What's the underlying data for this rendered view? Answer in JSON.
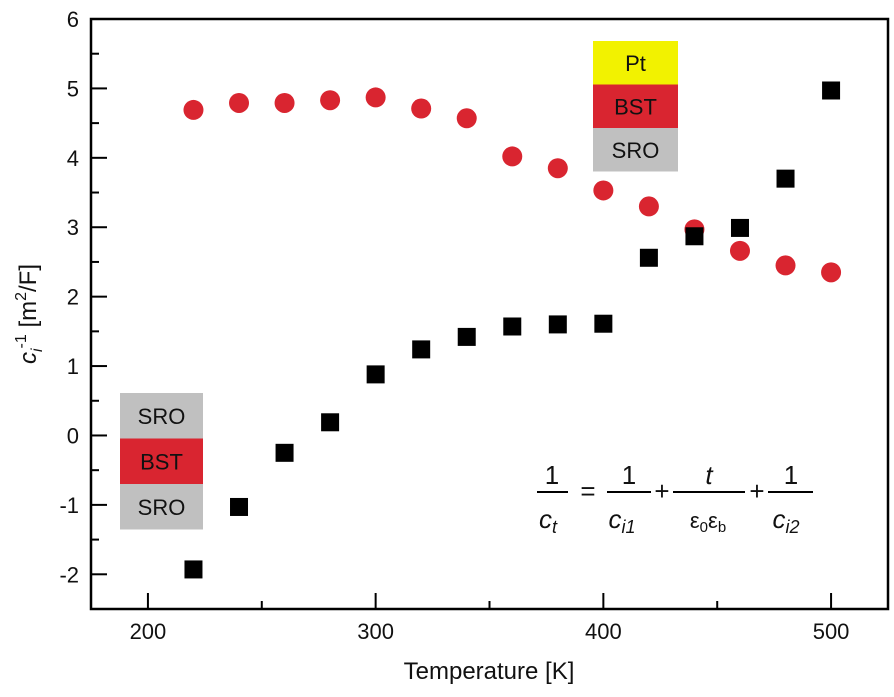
{
  "chart_data": {
    "type": "scatter",
    "title": "",
    "xlabel": "Temperature [K]",
    "ylabel": {
      "base": "c",
      "sub": "i",
      "sup": "-1",
      "unit_pre": " [m",
      "unit_sup": "2",
      "unit_post": "/F]"
    },
    "xlim": [
      175,
      525
    ],
    "ylim": [
      -2.5,
      6
    ],
    "xticks": [
      "200",
      "300",
      "400",
      "500"
    ],
    "xtick_values": [
      200,
      300,
      400,
      500
    ],
    "yticks": [
      "-2",
      "-1",
      "0",
      "1",
      "2",
      "3",
      "4",
      "5",
      "6"
    ],
    "ytick_values": [
      -2,
      -1,
      0,
      1,
      2,
      3,
      4,
      5,
      6
    ],
    "grid": false,
    "series": [
      {
        "name": "Pt/BST/SRO",
        "marker": "circle",
        "color": "#d92530",
        "x": [
          220,
          240,
          260,
          280,
          300,
          320,
          340,
          360,
          380,
          400,
          420,
          440,
          460,
          480,
          500
        ],
        "y": [
          4.69,
          4.79,
          4.79,
          4.83,
          4.87,
          4.71,
          4.57,
          4.02,
          3.85,
          3.53,
          3.3,
          2.97,
          2.66,
          2.45,
          2.35
        ]
      },
      {
        "name": "SRO/BST/SRO",
        "marker": "square",
        "color": "#000000",
        "x": [
          220,
          240,
          260,
          280,
          300,
          320,
          340,
          360,
          380,
          400,
          420,
          440,
          460,
          480,
          500
        ],
        "y": [
          -1.93,
          -1.03,
          -0.25,
          0.19,
          0.88,
          1.24,
          1.42,
          1.57,
          1.6,
          1.61,
          2.56,
          2.87,
          2.99,
          3.7,
          4.97
        ]
      }
    ],
    "annotations": {
      "stack_top": [
        {
          "label": "Pt",
          "color": "#f2f200"
        },
        {
          "label": "BST",
          "color": "#d92530"
        },
        {
          "label": "SRO",
          "color": "#c0c0c0"
        }
      ],
      "stack_bottom": [
        {
          "label": "SRO",
          "color": "#c0c0c0"
        },
        {
          "label": "BST",
          "color": "#d92530"
        },
        {
          "label": "SRO",
          "color": "#c0c0c0"
        }
      ],
      "equation": {
        "one": "1",
        "eq": "=",
        "plus": "+",
        "ct": "c",
        "ct_sub": "t",
        "ci1": "c",
        "ci1_sub": "i1",
        "t": "t",
        "eps": "ε",
        "eps0": "0",
        "epsb": "b",
        "ci2": "c",
        "ci2_sub": "i2"
      }
    }
  }
}
